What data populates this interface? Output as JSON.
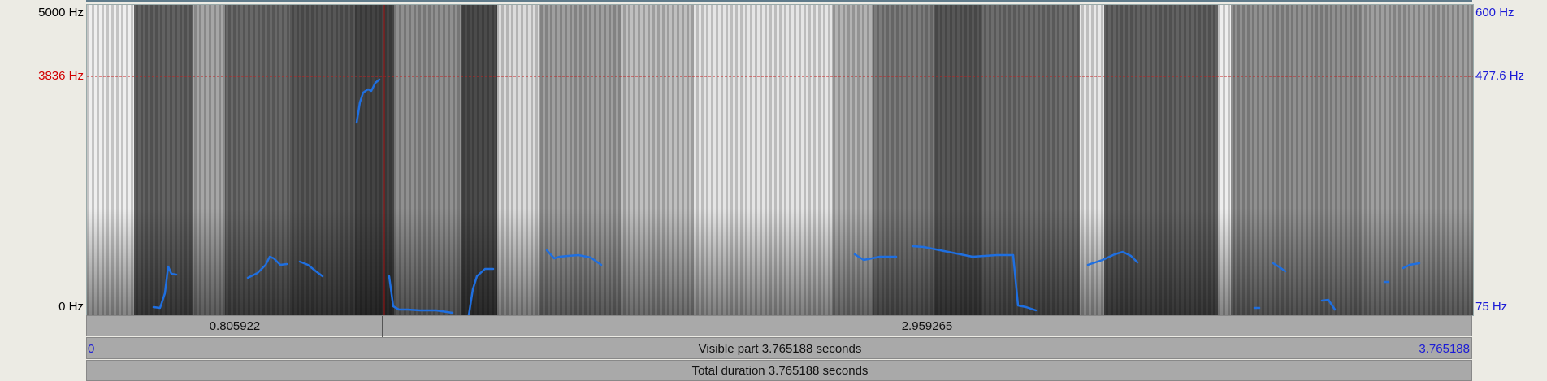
{
  "frequency_axis": {
    "top_left": "5000 Hz",
    "cursor_left": "3836 Hz",
    "bottom_left": "0 Hz",
    "top_right": "600 Hz",
    "cursor_right": "477.6 Hz",
    "bottom_right": "75 Hz"
  },
  "selection": {
    "left_segment": "0.805922",
    "right_segment": "2.959265"
  },
  "visible_bar": {
    "start": "0",
    "label": "Visible part 3.765188 seconds",
    "end": "3.765188"
  },
  "total_bar": {
    "label": "Total duration 3.765188 seconds"
  },
  "colors": {
    "pitch": "#1f6fe0",
    "cursor": "#c81e1e",
    "right_axis": "#1b1bd6"
  }
}
